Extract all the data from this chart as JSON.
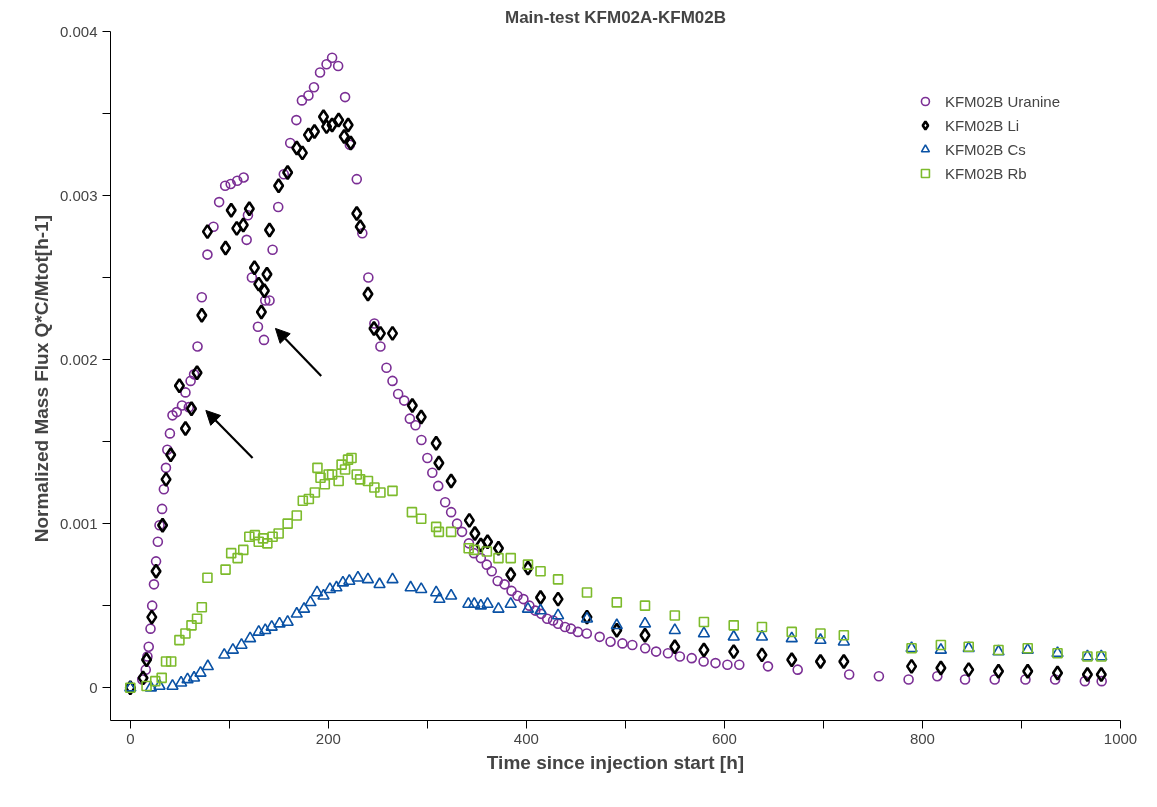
{
  "chart_data": {
    "type": "scatter",
    "title": "Main-test KFM02A-KFM02B",
    "xlabel": "Time since injection start [h]",
    "ylabel": "Normalized Mass Flux  Q*C/Mtot[h-1]",
    "xlim": [
      -20,
      1000
    ],
    "ylim": [
      -0.0002,
      0.004
    ],
    "xticks": [
      0,
      {
        "value": 100,
        "label": null
      },
      200,
      {
        "value": 300,
        "label": null
      },
      400,
      {
        "value": 500,
        "label": null
      },
      600,
      {
        "value": 700,
        "label": null
      },
      800,
      {
        "value": 900,
        "label": null
      },
      1000
    ],
    "yticks": [
      0,
      {
        "value": 0.0005,
        "label": null
      },
      0.001,
      {
        "value": 0.0015,
        "label": null
      },
      0.002,
      {
        "value": 0.0025,
        "label": null
      },
      0.003,
      {
        "value": 0.0035,
        "label": null
      },
      0.004
    ],
    "grid": false,
    "legend": "top right",
    "series": [
      {
        "name": "KFM02B Uranine",
        "color": "#7b2f95",
        "marker": "circle",
        "x": [
          0,
          12.1,
          15.6,
          17.3,
          18.6,
          20.4,
          22.1,
          23.9,
          26.0,
          27.8,
          29.5,
          32.1,
          33.9,
          36.0,
          37.4,
          40.0,
          42.6,
          46.9,
          52.2,
          55.7,
          59.1,
          60.9,
          64.4,
          67.9,
          72.2,
          77.9,
          84.0,
          89.7,
          95.8,
          101.4,
          108,
          114.5,
          117.5,
          118.8,
          122.8,
          128.9,
          135,
          136.3,
          140.6,
          143.7,
          149.4,
          155,
          161.5,
          167.7,
          173.3,
          179.9,
          185.5,
          191.6,
          198.2,
          203.8,
          209.9,
          216.9,
          221.7,
          228.7,
          234.3,
          240.4,
          246.5,
          252.6,
          258.7,
          264.8,
          270.5,
          276.6,
          282.3,
          288,
          294,
          300,
          305,
          311,
          318,
          324,
          330,
          335,
          342,
          347,
          354,
          360,
          365,
          371,
          378,
          385,
          391,
          397,
          403,
          409,
          415,
          421,
          427,
          432,
          439,
          445,
          452,
          461,
          474,
          485,
          497,
          507,
          520,
          531,
          543,
          555,
          567,
          579,
          591,
          603,
          615,
          644,
          674,
          726,
          756,
          786,
          815,
          843,
          873,
          904,
          934,
          964,
          981
        ],
        "values": [
          0,
          5e-05,
          0.00011,
          0.00019,
          0.00025,
          0.00036,
          0.0005,
          0.00063,
          0.00077,
          0.00089,
          0.00099,
          0.00109,
          0.00121,
          0.00134,
          0.00145,
          0.00155,
          0.00166,
          0.00168,
          0.00172,
          0.0018,
          0.00171,
          0.00187,
          0.00191,
          0.00208,
          0.00238,
          0.00264,
          0.00281,
          0.00296,
          0.00306,
          0.00307,
          0.00309,
          0.00311,
          0.00273,
          0.00288,
          0.0025,
          0.0022,
          0.00212,
          0.00236,
          0.00236,
          0.00267,
          0.00293,
          0.00313,
          0.00332,
          0.00346,
          0.00358,
          0.00361,
          0.00366,
          0.00375,
          0.0038,
          0.00384,
          0.00379,
          0.0036,
          0.00331,
          0.0031,
          0.00277,
          0.0025,
          0.00222,
          0.00208,
          0.00195,
          0.00187,
          0.00179,
          0.00175,
          0.00164,
          0.0016,
          0.00151,
          0.0014,
          0.00131,
          0.00123,
          0.00113,
          0.00107,
          0.001,
          0.00095,
          0.00088,
          0.00082,
          0.00079,
          0.00075,
          0.00071,
          0.00065,
          0.00063,
          0.00059,
          0.00056,
          0.00054,
          0.0005,
          0.00047,
          0.00045,
          0.00042,
          0.00041,
          0.00039,
          0.00037,
          0.00036,
          0.00034,
          0.00033,
          0.00031,
          0.00028,
          0.00027,
          0.00026,
          0.00024,
          0.00022,
          0.00021,
          0.00019,
          0.00018,
          0.00016,
          0.00015,
          0.00014,
          0.00014,
          0.00013,
          0.00011,
          8e-05,
          7e-05,
          5e-05,
          7e-05,
          5e-05,
          5e-05,
          5e-05,
          5e-05,
          4e-05,
          4e-05
        ]
      },
      {
        "name": "KFM02B Li",
        "color": "#000000",
        "marker": "diamond",
        "x": [
          0,
          12.9,
          16.4,
          21.7,
          26.0,
          32.6,
          36.1,
          40.8,
          49.6,
          55.7,
          61.8,
          67.4,
          72.2,
          77.9,
          96.2,
          101.9,
          107.5,
          114.1,
          120.2,
          125.4,
          129.7,
          132.4,
          135.4,
          138,
          140.6,
          149.8,
          158.9,
          168.1,
          173.8,
          179.9,
          186,
          195.1,
          198.2,
          203.8,
          210.4,
          216,
          220,
          222.6,
          228.7,
          232.2,
          240,
          246.1,
          252.6,
          264.8,
          284.8,
          293.8,
          308.9,
          311.6,
          324,
          342.4,
          348,
          354,
          360.8,
          371.8,
          384.2,
          401.6,
          414.3,
          432,
          461.2,
          491.3,
          519.8,
          549.9,
          579.3,
          609.4,
          637.9,
          668,
          697,
          720.6,
          789,
          818.6,
          846.7,
          876.8,
          906.3,
          936.4,
          966.6,
          980.6
        ],
        "values": [
          0,
          6e-05,
          0.00017,
          0.00043,
          0.00071,
          0.00099,
          0.00127,
          0.00142,
          0.00184,
          0.00158,
          0.0017,
          0.00192,
          0.00227,
          0.00278,
          0.00268,
          0.00291,
          0.0028,
          0.00282,
          0.00292,
          0.00256,
          0.00246,
          0.00229,
          0.00242,
          0.00252,
          0.00279,
          0.00306,
          0.00314,
          0.00329,
          0.00326,
          0.00337,
          0.00339,
          0.00348,
          0.00342,
          0.00343,
          0.00346,
          0.00336,
          0.00343,
          0.00332,
          0.00289,
          0.00281,
          0.0024,
          0.00219,
          0.00216,
          0.00216,
          0.00172,
          0.00165,
          0.00149,
          0.00137,
          0.00126,
          0.00102,
          0.00094,
          0.00087,
          0.00089,
          0.00085,
          0.00069,
          0.00073,
          0.00055,
          0.00054,
          0.00043,
          0.00035,
          0.00032,
          0.00025,
          0.00023,
          0.00022,
          0.0002,
          0.00017,
          0.00016,
          0.00016,
          0.00013,
          0.00012,
          0.00011,
          0.0001,
          0.0001,
          9e-05,
          8e-05,
          8e-05
        ]
      },
      {
        "name": "KFM02B Cs",
        "color": "#0a52a5",
        "marker": "triangle",
        "x": [
          0,
          20.8,
          29.5,
          42.6,
          51.3,
          57.8,
          64.4,
          70.9,
          78.3,
          94.9,
          103.6,
          112.3,
          121,
          129.7,
          136.3,
          142.8,
          150.7,
          158.9,
          168.1,
          175.5,
          182,
          188.6,
          195.1,
          201.6,
          208.2,
          214.7,
          221.2,
          229.9,
          240,
          251.7,
          264.8,
          283.1,
          293.8,
          308.9,
          312.2,
          324,
          341.4,
          347.4,
          354,
          360.8,
          371.8,
          384.2,
          401.6,
          414.3,
          432,
          461.2,
          491.3,
          519.8,
          549.9,
          579.3,
          609.4,
          637.9,
          668,
          697,
          720.6,
          789,
          818.6,
          846.7,
          876.8,
          906.3,
          936.4,
          966.6,
          980.6
        ],
        "values": [
          0,
          0,
          1e-05,
          1e-05,
          3e-05,
          5e-05,
          6e-05,
          9e-05,
          0.00013,
          0.0002,
          0.00023,
          0.00026,
          0.0003,
          0.00034,
          0.00035,
          0.00037,
          0.00039,
          0.0004,
          0.00045,
          0.00048,
          0.00052,
          0.00058,
          0.00056,
          0.0006,
          0.00061,
          0.00064,
          0.00065,
          0.00067,
          0.00066,
          0.00063,
          0.00066,
          0.00061,
          0.0006,
          0.00058,
          0.00054,
          0.00056,
          0.00051,
          0.00051,
          0.0005,
          0.00051,
          0.00048,
          0.00051,
          0.00048,
          0.00047,
          0.00044,
          0.00042,
          0.00038,
          0.00039,
          0.00035,
          0.00033,
          0.00031,
          0.00031,
          0.0003,
          0.00029,
          0.00028,
          0.00024,
          0.00023,
          0.00024,
          0.00022,
          0.00023,
          0.00021,
          0.00019,
          0.00019
        ]
      },
      {
        "name": "KFM02B Rb",
        "color": "#7dbb2c",
        "marker": "square",
        "x": [
          0,
          16.4,
          25.2,
          31.7,
          36.1,
          41.3,
          49.6,
          55.7,
          61.8,
          67.4,
          72.2,
          77.9,
          96.2,
          101.9,
          108.4,
          114.1,
          120.2,
          125.8,
          129.7,
          134.1,
          138.4,
          143.7,
          149.8,
          158.9,
          168.1,
          174.2,
          180.3,
          186.4,
          189,
          192.1,
          196.4,
          200.3,
          203.8,
          210.4,
          213.4,
          216.9,
          219.9,
          223.4,
          228.7,
          232.1,
          240,
          246.5,
          252.6,
          264.8,
          284.4,
          293.8,
          308.9,
          311.6,
          324,
          341.7,
          347.4,
          360.1,
          371.8,
          384.2,
          401.6,
          414.3,
          432,
          461.2,
          491.3,
          519.8,
          549.9,
          579.3,
          609.4,
          637.9,
          668,
          697,
          720.6,
          789,
          818.6,
          846.7,
          876.8,
          906.3,
          936.4,
          966.6,
          980.6
        ],
        "values": [
          0,
          1e-05,
          4e-05,
          6e-05,
          0.00016,
          0.00016,
          0.00029,
          0.00033,
          0.00038,
          0.00042,
          0.00049,
          0.00067,
          0.00072,
          0.00082,
          0.00079,
          0.00084,
          0.00092,
          0.00093,
          0.00089,
          0.00091,
          0.00088,
          0.00092,
          0.00094,
          0.001,
          0.00105,
          0.00114,
          0.00115,
          0.00119,
          0.00134,
          0.00128,
          0.00124,
          0.0013,
          0.0013,
          0.00126,
          0.00136,
          0.00133,
          0.00139,
          0.0014,
          0.0013,
          0.00127,
          0.00126,
          0.00122,
          0.00119,
          0.0012,
          0.00107,
          0.00103,
          0.00098,
          0.00095,
          0.00095,
          0.00085,
          0.00084,
          0.00083,
          0.00079,
          0.00079,
          0.00075,
          0.00071,
          0.00066,
          0.00058,
          0.00052,
          0.0005,
          0.00044,
          0.0004,
          0.00038,
          0.00037,
          0.00034,
          0.00033,
          0.00032,
          0.00024,
          0.00026,
          0.00025,
          0.00023,
          0.00024,
          0.00021,
          0.00019,
          0.00019
        ]
      }
    ]
  }
}
